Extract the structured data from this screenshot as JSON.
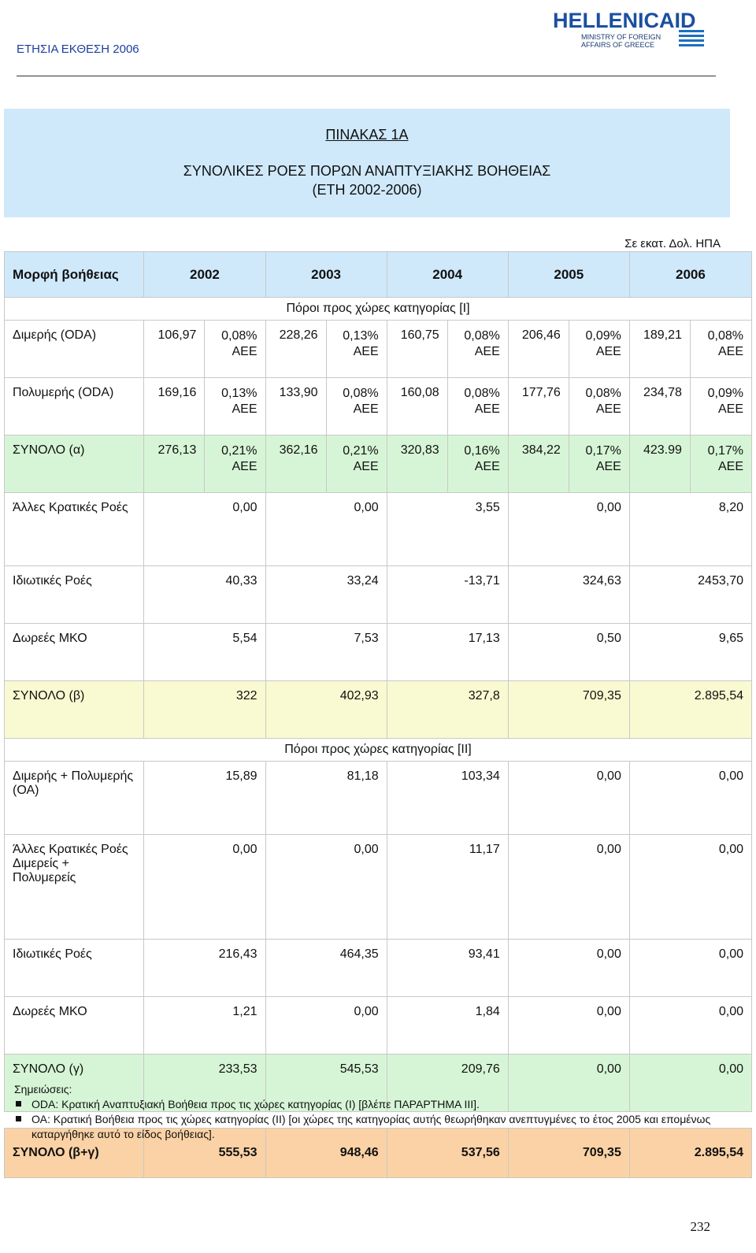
{
  "header": {
    "report_title": "ΕΤΗΣΙΑ ΕΚΘΕΣΗ 2006",
    "logo": {
      "name": "HELLENICAID",
      "line1": "MINISTRY OF FOREIGN",
      "line2": "AFFAIRS OF GREECE"
    }
  },
  "title": {
    "line1": "ΠΙΝΑΚΑΣ   1Α",
    "line2": "ΣΥΝΟΛΙΚΕΣ ΡΟΕΣ ΠΟΡΩΝ ΑΝΑΠΤΥΞΙΑΚΗΣ ΒΟΗΘΕΙΑΣ",
    "line3": "(ΕΤΗ 2002-2006)"
  },
  "units": "Σε εκατ. Δολ. ΗΠΑ",
  "table": {
    "header": {
      "label": "Μορφή βοήθειας",
      "years": [
        "2002",
        "2003",
        "2004",
        "2005",
        "2006"
      ]
    },
    "section1": "Πόροι προς χώρες κατηγορίας [I]",
    "oda_rows": [
      {
        "label": "Διμερής (ODA)",
        "cells": [
          {
            "v": "106,97",
            "p": "0,08%",
            "a": "ΑΕΕ"
          },
          {
            "v": "228,26",
            "p": "0,13%",
            "a": "ΑΕΕ"
          },
          {
            "v": "160,75",
            "p": "0,08%",
            "a": "ΑΕΕ"
          },
          {
            "v": "206,46",
            "p": "0,09%",
            "a": "ΑΕΕ"
          },
          {
            "v": "189,21",
            "p": "0,08%",
            "a": "ΑΕΕ"
          }
        ]
      },
      {
        "label": "Πολυμερής (ODA)",
        "cells": [
          {
            "v": "169,16",
            "p": "0,13%",
            "a": "ΑΕΕ"
          },
          {
            "v": "133,90",
            "p": "0,08%",
            "a": "ΑΕΕ"
          },
          {
            "v": "160,08",
            "p": "0,08%",
            "a": "ΑΕΕ"
          },
          {
            "v": "177,76",
            "p": "0,08%",
            "a": "ΑΕΕ"
          },
          {
            "v": "234,78",
            "p": "0,09%",
            "a": "ΑΕΕ"
          }
        ]
      },
      {
        "label": "ΣΥΝΟΛΟ (α)",
        "cells": [
          {
            "v": "276,13",
            "p": "0,21%",
            "a": "ΑΕΕ"
          },
          {
            "v": "362,16",
            "p": "0,21%",
            "a": "ΑΕΕ"
          },
          {
            "v": "320,83",
            "p": "0,16%",
            "a": "ΑΕΕ"
          },
          {
            "v": "384,22",
            "p": "0,17%",
            "a": "ΑΕΕ"
          },
          {
            "v": "423.99",
            "p": "0,17%",
            "a": "ΑΕΕ"
          }
        ]
      }
    ],
    "other_rows_1": [
      {
        "label": "Άλλες Κρατικές Ροές",
        "values": [
          "0,00",
          "0,00",
          "3,55",
          "0,00",
          "8,20"
        ]
      },
      {
        "label": "Ιδιωτικές Ροές",
        "values": [
          "40,33",
          "33,24",
          "-13,71",
          "324,63",
          "2453,70"
        ]
      },
      {
        "label": "Δωρεές ΜΚΟ",
        "values": [
          "5,54",
          "7,53",
          "17,13",
          "0,50",
          "9,65"
        ]
      }
    ],
    "total_b": {
      "label": "ΣΥΝΟΛΟ (β)",
      "values": [
        "322",
        "402,93",
        "327,8",
        "709,35",
        "2.895,54"
      ]
    },
    "section2": "Πόροι προς χώρες κατηγορίας [II]",
    "rows_2": [
      {
        "label": "Διμερής + Πολυμερής (ΟΑ)",
        "values": [
          "15,89",
          "81,18",
          "103,34",
          "0,00",
          "0,00"
        ]
      },
      {
        "label": "Άλλες Κρατικές Ροές Διμερείς + Πολυμερείς",
        "values": [
          "0,00",
          "0,00",
          "11,17",
          "0,00",
          "0,00"
        ]
      },
      {
        "label": "Ιδιωτικές Ροές",
        "values": [
          "216,43",
          "464,35",
          "93,41",
          "0,00",
          "0,00"
        ]
      },
      {
        "label": "Δωρεές ΜΚΟ",
        "values": [
          "1,21",
          "0,00",
          "1,84",
          "0,00",
          "0,00"
        ]
      }
    ],
    "total_c": {
      "label": "ΣΥΝΟΛΟ (γ)",
      "values": [
        "233,53",
        "545,53",
        "209,76",
        "0,00",
        "0,00"
      ]
    },
    "total_bc": {
      "label": "ΣΥΝΟΛΟ (β+γ)",
      "values": [
        "555,53",
        "948,46",
        "537,56",
        "709,35",
        "2.895,54"
      ]
    }
  },
  "notes": {
    "heading": "Σημειώσεις:",
    "items": [
      "ODA: Κρατική Αναπτυξιακή Βοήθεια προς τις χώρες κατηγορίας (Ι) [βλέπε ΠΑΡΑΡΤΗΜΑ ΙΙΙ].",
      "ΟΑ: Κρατική Βοήθεια προς τις χώρες κατηγορίας (ΙΙ) [οι χώρες της κατηγορίας αυτής θεωρήθηκαν ανεπτυγμένες το έτος 2005 και επομένως καταργήθηκε αυτό το είδος βοήθειας]."
    ]
  },
  "page_number": "232",
  "colors": {
    "title_bg": "#cfe9fb",
    "green_bg": "#d6f5d6",
    "yellow_bg": "#fafad2",
    "orange_bg": "#fbd2a5",
    "header_text": "#1b3fa0"
  }
}
